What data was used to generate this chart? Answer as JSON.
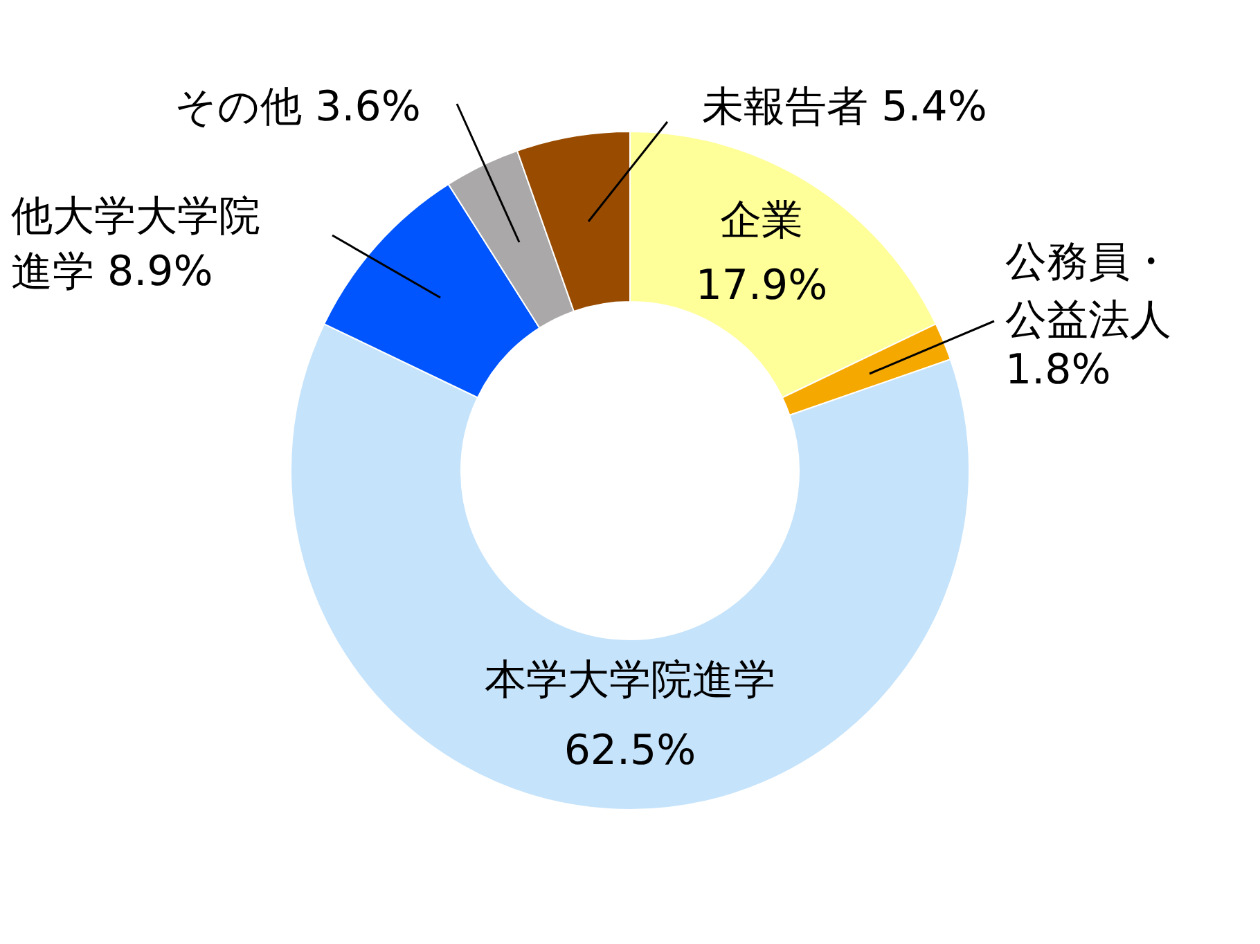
{
  "chart_data": {
    "type": "donut",
    "categories": [
      "企業",
      "公務員・公益法人",
      "本学大学院進学",
      "他大学大学院進学",
      "その他",
      "未報告者"
    ],
    "values": [
      17.9,
      1.8,
      62.5,
      8.9,
      3.6,
      5.4
    ],
    "value_labels": [
      "17.9%",
      "1.8%",
      "62.5%",
      "8.9%",
      "3.6%",
      "5.4%"
    ],
    "colors": [
      "#ffff99",
      "#f5a800",
      "#c5e3fb",
      "#0055ff",
      "#aaa8a8",
      "#994c00"
    ]
  }
}
